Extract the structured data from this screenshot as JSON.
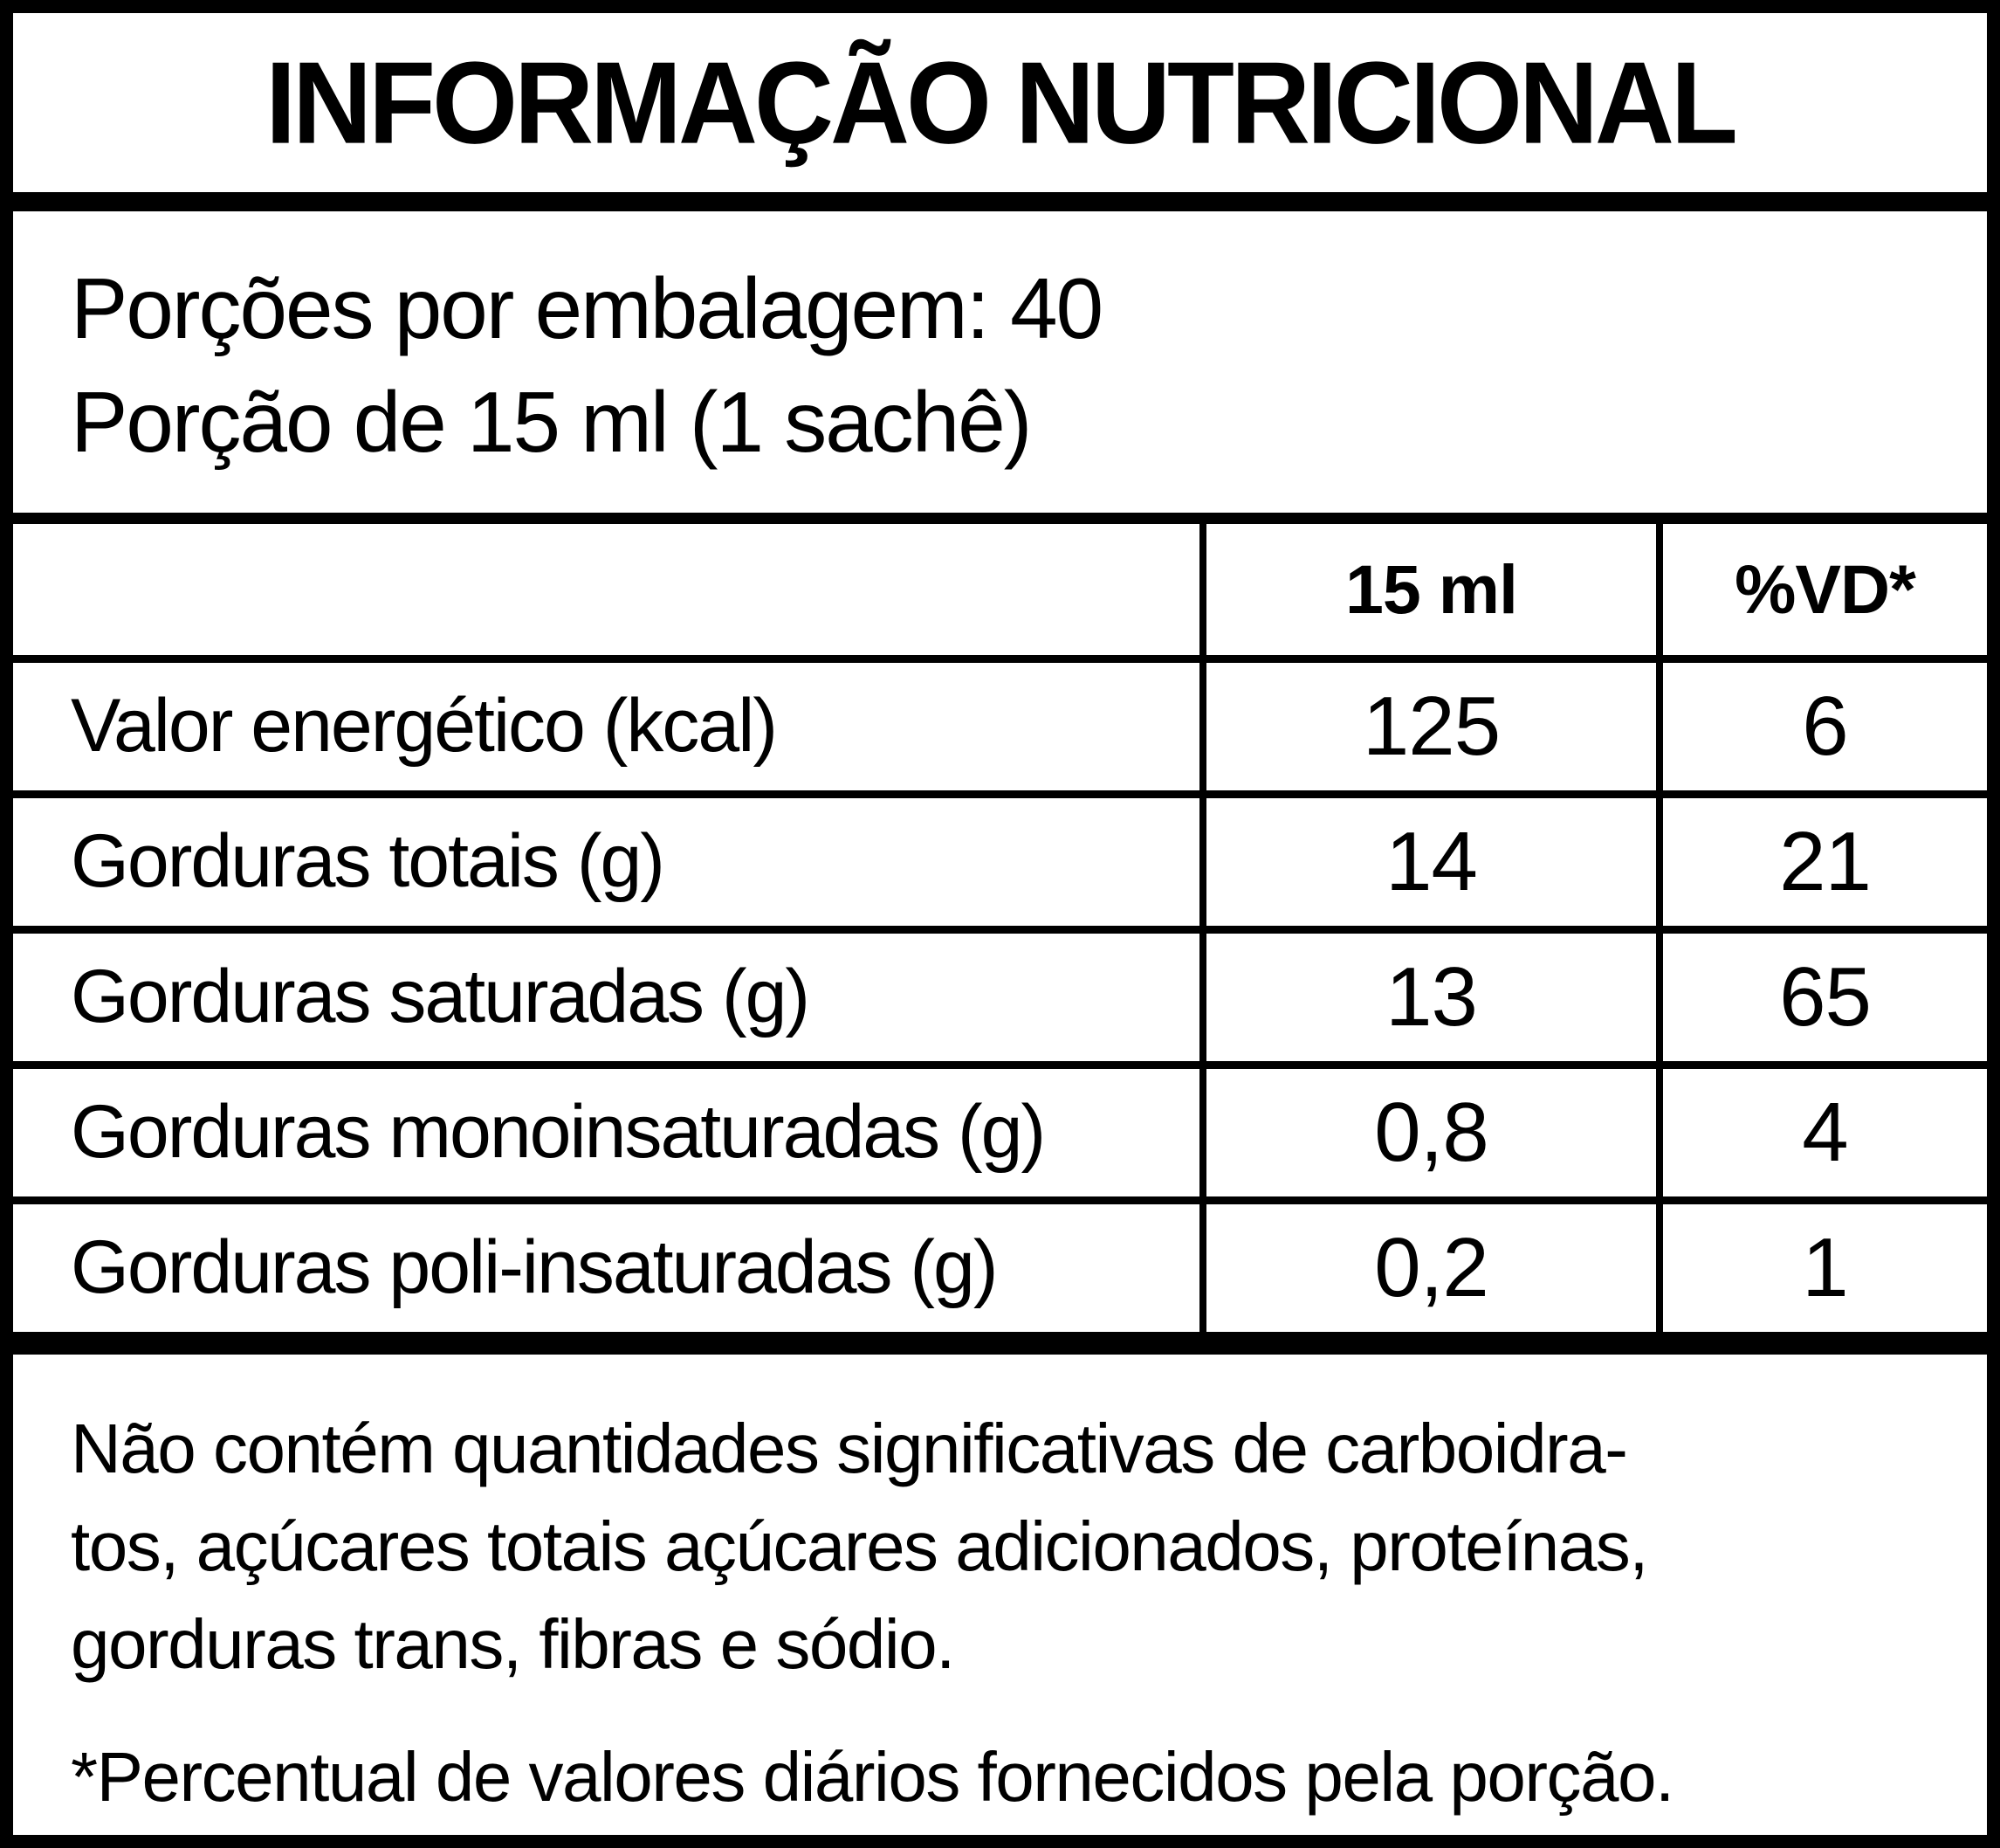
{
  "label": {
    "title": "INFORMAÇÃO NUTRICIONAL",
    "serving": {
      "line1": "Porções por embalagem: 40",
      "line2": "Porção de 15 ml (1 sachê)"
    },
    "table": {
      "columns": [
        "",
        "15 ml",
        "%VD*"
      ],
      "rows": [
        {
          "name": "Valor energético (kcal)",
          "amount": "125",
          "vd": "6"
        },
        {
          "name": "Gorduras totais (g)",
          "amount": "14",
          "vd": "21"
        },
        {
          "name": "Gorduras saturadas (g)",
          "amount": "13",
          "vd": "65"
        },
        {
          "name": "Gorduras monoinsaturadas (g)",
          "amount": "0,8",
          "vd": "4"
        },
        {
          "name": "Gorduras poli-insaturadas (g)",
          "amount": "0,2",
          "vd": "1"
        }
      ]
    },
    "footer": {
      "para_lines": [
        "Não contém quantidades significativas de carboidra-",
        "tos, açúcares totais açúcares adicionados, proteínas,",
        "gorduras trans, fibras e sódio."
      ],
      "note": "*Percentual de valores diários fornecidos pela porção."
    },
    "colors": {
      "ink": "#000000",
      "background": "#ffffff"
    }
  }
}
